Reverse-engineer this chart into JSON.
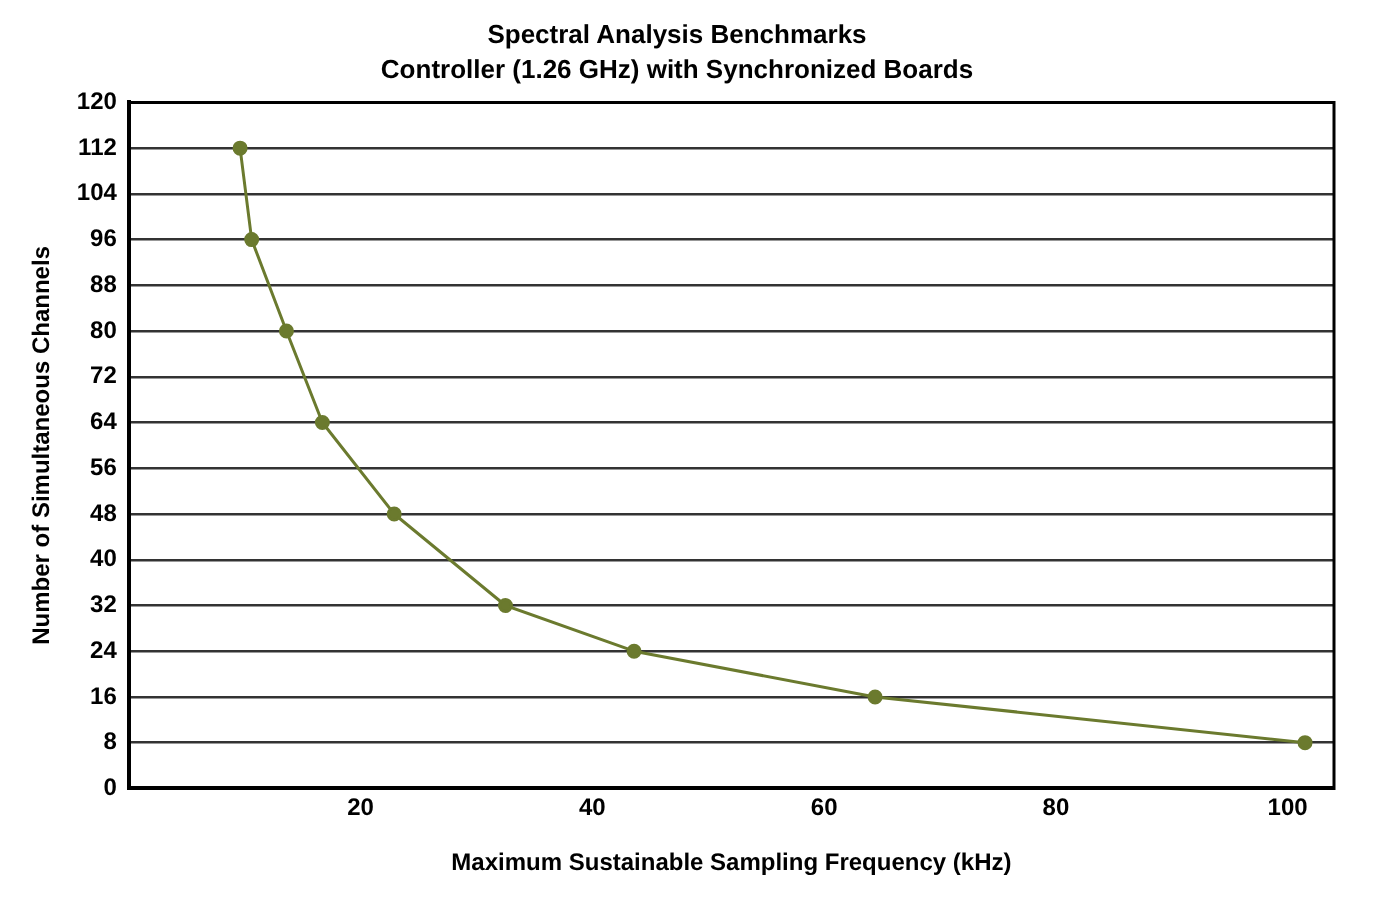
{
  "chart_data": {
    "type": "line",
    "title": "Spectral Analysis Benchmarks",
    "subtitle": "Controller (1.26 GHz) with Synchronized Boards",
    "xlabel": "Maximum Sustainable Sampling Frequency (kHz)",
    "ylabel": "Number of Simultaneous Channels",
    "x": [
      9.6,
      10.6,
      13.6,
      16.7,
      22.9,
      32.5,
      43.6,
      64.4,
      101.5
    ],
    "series": [
      {
        "color": "#6b7a2e",
        "values": [
          112,
          96,
          80,
          64,
          48,
          32,
          24,
          16,
          8
        ]
      }
    ],
    "xlim": [
      0,
      104
    ],
    "xticks": [
      20,
      40,
      60,
      80,
      100
    ],
    "ylim": [
      0,
      120
    ],
    "yticks": [
      0,
      8,
      16,
      24,
      32,
      40,
      48,
      56,
      64,
      72,
      80,
      88,
      96,
      104,
      112,
      120
    ],
    "grid": "y",
    "legend": false,
    "marker": "circle",
    "line_style": "solid"
  }
}
